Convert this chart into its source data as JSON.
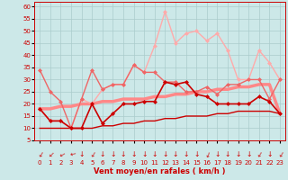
{
  "xlabel": "Vent moyen/en rafales ( km/h )",
  "background_color": "#cce8e8",
  "grid_color": "#aacccc",
  "x": [
    0,
    1,
    2,
    3,
    4,
    5,
    6,
    7,
    8,
    9,
    10,
    11,
    12,
    13,
    14,
    15,
    16,
    17,
    18,
    19,
    20,
    21,
    22,
    23
  ],
  "ylim": [
    5,
    62
  ],
  "yticks": [
    5,
    10,
    15,
    20,
    25,
    30,
    35,
    40,
    45,
    50,
    55,
    60
  ],
  "lines": [
    {
      "values": [
        18,
        13,
        13,
        10,
        10,
        20,
        12,
        16,
        20,
        20,
        21,
        21,
        29,
        28,
        29,
        24,
        23,
        20,
        20,
        20,
        20,
        23,
        21,
        16
      ],
      "color": "#cc0000",
      "lw": 1.2,
      "marker": "D",
      "ms": 2.0,
      "zorder": 5
    },
    {
      "values": [
        34,
        25,
        21,
        10,
        22,
        34,
        26,
        28,
        28,
        36,
        33,
        33,
        29,
        29,
        25,
        25,
        27,
        24,
        28,
        28,
        30,
        30,
        22,
        30
      ],
      "color": "#ee6666",
      "lw": 1.0,
      "marker": "D",
      "ms": 2.0,
      "zorder": 4
    },
    {
      "values": [
        18,
        13,
        13,
        10,
        22,
        20,
        26,
        28,
        28,
        36,
        33,
        44,
        58,
        45,
        49,
        50,
        46,
        49,
        42,
        30,
        30,
        42,
        37,
        30
      ],
      "color": "#ffaaaa",
      "lw": 1.0,
      "marker": "D",
      "ms": 2.0,
      "zorder": 3
    },
    {
      "values": [
        18,
        18,
        19,
        19,
        20,
        20,
        21,
        21,
        22,
        22,
        22,
        23,
        23,
        24,
        24,
        25,
        25,
        26,
        26,
        27,
        27,
        28,
        28,
        16
      ],
      "color": "#ff8888",
      "lw": 2.5,
      "marker": null,
      "ms": 0,
      "zorder": 2
    },
    {
      "values": [
        10,
        10,
        10,
        10,
        10,
        10,
        11,
        11,
        12,
        12,
        13,
        13,
        14,
        14,
        15,
        15,
        15,
        16,
        16,
        17,
        17,
        17,
        17,
        16
      ],
      "color": "#cc0000",
      "lw": 1.0,
      "marker": null,
      "ms": 0,
      "zorder": 2
    }
  ],
  "arrow_angles": [
    210,
    225,
    240,
    255,
    180,
    210,
    180,
    180,
    180,
    180,
    180,
    180,
    180,
    180,
    180,
    180,
    200,
    180,
    180,
    180,
    180,
    210,
    180,
    210
  ],
  "arrow_color": "#cc0000",
  "tick_color": "#cc0000",
  "label_color": "#cc0000",
  "spine_color": "#cc0000"
}
